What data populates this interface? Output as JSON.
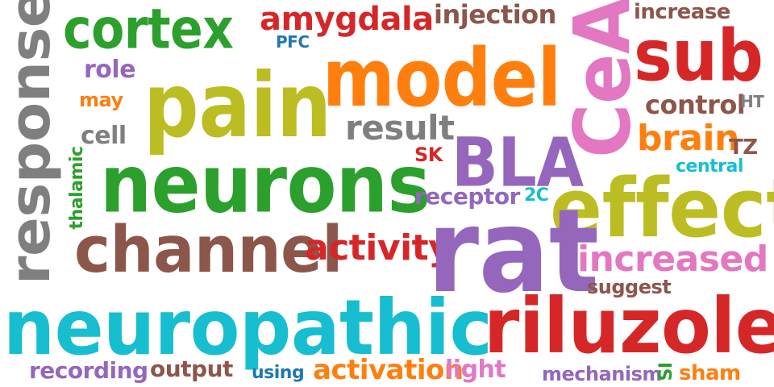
{
  "palette": {
    "green": "#2ca02c",
    "red": "#d62728",
    "brown": "#8c564b",
    "orange": "#ff7f0e",
    "blue": "#1f77b4",
    "olive": "#bcbd22",
    "purple": "#9467bd",
    "gray": "#7f7f7f",
    "pink": "#e377c2",
    "cyan": "#17becf"
  },
  "words": {
    "cortex": "cortex",
    "amygdala": "amygdala",
    "injection": "injection",
    "increase": "increase",
    "pfc": "PFC",
    "sub": "sub",
    "model": "model",
    "pain": "pain",
    "role": "role",
    "may": "may",
    "control": "control",
    "ht": "HT",
    "result": "result",
    "cell": "cell",
    "brain": "brain",
    "tz": "TZ",
    "sk": "SK",
    "bla": "BLA",
    "central": "central",
    "neurons": "neurons",
    "effect": "effect",
    "receptor": "receptor",
    "two_c": "2C",
    "channel": "channel",
    "activity": "activity",
    "rat": "rat",
    "increased": "increased",
    "suggest": "suggest",
    "neuropathic": "neuropathic",
    "riluzole": "riluzole",
    "recording": "recording",
    "output": "output",
    "using": "using",
    "activation": "activation",
    "light": "light",
    "mechanism": "mechanism",
    "sham": "sham",
    "response": "response",
    "thalamic": "thalamic",
    "cea": "CeA",
    "si": "SI"
  }
}
